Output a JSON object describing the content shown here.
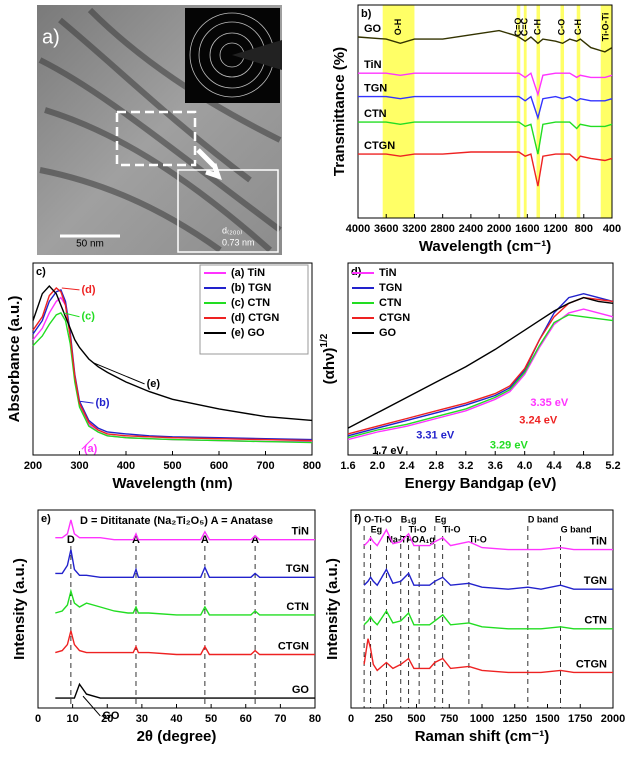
{
  "image_panel": {
    "label": "a)",
    "scale_bar": "50 nm",
    "spacing": "d₍₂₀₀₎",
    "spacing_value": "0.73 nm"
  },
  "chart_data": [
    {
      "type": "line",
      "panel": "b)",
      "xlabel": "Wavelength (cm⁻¹)",
      "ylabel": "Transmittance (%)",
      "legend": "left",
      "x": [
        4000,
        3600,
        3400,
        3200,
        2800,
        2400,
        2000,
        1800,
        1720,
        1630,
        1550,
        1450,
        1380,
        1200,
        1100,
        1000,
        900,
        850,
        700,
        500,
        400
      ],
      "xlim": [
        4000,
        400
      ],
      "xticks": [
        4000,
        3600,
        3200,
        2800,
        2400,
        2000,
        1600,
        1200,
        800,
        400
      ],
      "ylim": [
        0,
        100
      ],
      "series": [
        {
          "name": "GO",
          "color": "#333300",
          "values": [
            85,
            84,
            82,
            84,
            84,
            86,
            88,
            86,
            85,
            83,
            85,
            82,
            84,
            83,
            82,
            84,
            83,
            84,
            80,
            78,
            80
          ]
        },
        {
          "name": "TiN",
          "color": "#ff33ff",
          "values": [
            68,
            68,
            67,
            68,
            68,
            68,
            68,
            68,
            68,
            66,
            68,
            58,
            67,
            68,
            68,
            68,
            66,
            67,
            66,
            66,
            67
          ]
        },
        {
          "name": "TGN",
          "color": "#3333ff",
          "values": [
            57,
            57,
            56,
            57,
            57,
            57,
            57,
            57,
            57,
            55,
            57,
            47,
            56,
            57,
            56,
            57,
            55,
            56,
            55,
            55,
            56
          ]
        },
        {
          "name": "CTN",
          "color": "#22dd22",
          "values": [
            45,
            45,
            44,
            45,
            45,
            45,
            45,
            45,
            45,
            43,
            44,
            30,
            44,
            45,
            45,
            45,
            42,
            44,
            43,
            43,
            44
          ]
        },
        {
          "name": "CTGN",
          "color": "#ee2222",
          "values": [
            30,
            30,
            29,
            30,
            30,
            31,
            31,
            31,
            31,
            29,
            30,
            15,
            29,
            30,
            30,
            30,
            27,
            29,
            28,
            27,
            28
          ]
        }
      ],
      "band_color": "#ffff66",
      "bands": [
        {
          "label": "O-H",
          "range": [
            3650,
            3200
          ]
        },
        {
          "label": "C=O",
          "range": [
            1750,
            1700
          ]
        },
        {
          "label": "C=C",
          "range": [
            1650,
            1610
          ]
        },
        {
          "label": "C-H",
          "range": [
            1470,
            1420
          ]
        },
        {
          "label": "C-O",
          "range": [
            1130,
            1080
          ]
        },
        {
          "label": "C-H",
          "range": [
            900,
            850
          ]
        },
        {
          "label": "Ti-O-Ti",
          "range": [
            560,
            400
          ]
        }
      ]
    },
    {
      "type": "line",
      "panel": "c)",
      "xlabel": "Wavelength (nm)",
      "ylabel": "Absorbance (a.u.)",
      "legend": "upper right",
      "x": [
        200,
        220,
        235,
        250,
        260,
        270,
        280,
        290,
        300,
        320,
        340,
        360,
        400,
        450,
        500,
        600,
        700,
        800
      ],
      "xlim": [
        200,
        800
      ],
      "xticks": [
        200,
        300,
        400,
        500,
        600,
        700,
        800
      ],
      "ylim": [
        0,
        100
      ],
      "series": [
        {
          "name": "(a) TiN",
          "color": "#ff33ff",
          "values": [
            60,
            66,
            74,
            80,
            82,
            78,
            62,
            40,
            26,
            16,
            12,
            10,
            9,
            8.5,
            8,
            7.5,
            7,
            7
          ]
        },
        {
          "name": "(b) TGN",
          "color": "#2222cc",
          "values": [
            63,
            70,
            80,
            85,
            86,
            80,
            64,
            42,
            28,
            18,
            14,
            12,
            11,
            10,
            9.5,
            9,
            8.5,
            8
          ]
        },
        {
          "name": "(c) CTN",
          "color": "#22dd22",
          "values": [
            57,
            62,
            68,
            73,
            74,
            70,
            58,
            38,
            25,
            15,
            12,
            10,
            9,
            8.5,
            8,
            7.5,
            7,
            6.5
          ]
        },
        {
          "name": "(d) CTGN",
          "color": "#ee2222",
          "values": [
            65,
            72,
            83,
            87,
            85,
            78,
            62,
            41,
            27,
            17,
            13,
            11,
            10,
            9.5,
            9,
            8.5,
            8,
            7.5
          ]
        },
        {
          "name": "(e) GO",
          "color": "#000000",
          "values": [
            70,
            84,
            88,
            84,
            78,
            72,
            66,
            60,
            56,
            50,
            46,
            43,
            38,
            33,
            29,
            24,
            20,
            18
          ]
        }
      ],
      "annotations": [
        {
          "text": "(d)",
          "color": "#ee2222"
        },
        {
          "text": "(c)",
          "color": "#22dd22"
        },
        {
          "text": "(e)",
          "color": "#000000"
        },
        {
          "text": "(b)",
          "color": "#2222cc"
        },
        {
          "text": "(a)",
          "color": "#ff33ff"
        }
      ]
    },
    {
      "type": "line",
      "panel": "d)",
      "xlabel": "Energy Bandgap (eV)",
      "ylabel": "(αhν)",
      "ylabel_sup": "1/2",
      "legend": "upper left",
      "x": [
        1.6,
        2.0,
        2.4,
        2.8,
        3.2,
        3.6,
        3.8,
        4.0,
        4.2,
        4.4,
        4.6,
        4.8,
        5.0,
        5.2
      ],
      "xlim": [
        1.6,
        5.2
      ],
      "xticks": [
        1.6,
        {
          "value": 2,
          "label": "2.0"
        },
        2.4,
        2.8,
        3.2,
        3.6,
        {
          "value": 4,
          "label": "4.0"
        },
        4.4,
        4.8,
        5.2
      ],
      "ylim": [
        0,
        100
      ],
      "series": [
        {
          "name": "TiN",
          "color": "#ff33ff",
          "values": [
            8,
            12,
            15,
            19,
            23,
            29,
            33,
            42,
            56,
            68,
            74,
            76,
            74,
            72
          ]
        },
        {
          "name": "TGN",
          "color": "#2222cc",
          "values": [
            10,
            14,
            18,
            22,
            26,
            31,
            35,
            44,
            60,
            74,
            82,
            84,
            82,
            80
          ]
        },
        {
          "name": "CTN",
          "color": "#22dd22",
          "values": [
            9,
            13,
            16,
            20,
            24,
            30,
            34,
            43,
            57,
            69,
            73,
            72,
            71,
            70
          ]
        },
        {
          "name": "CTGN",
          "color": "#ee2222",
          "values": [
            11,
            15,
            19,
            23,
            27,
            32,
            36,
            45,
            60,
            72,
            79,
            82,
            81,
            80
          ]
        },
        {
          "name": "GO",
          "color": "#000000",
          "values": [
            14,
            22,
            30,
            38,
            46,
            55,
            60,
            65,
            70,
            75,
            79,
            82,
            80,
            79
          ]
        }
      ],
      "annotations": [
        {
          "text": "3.35 eV",
          "color": "#ff33ff"
        },
        {
          "text": "3.24 eV",
          "color": "#ee2222"
        },
        {
          "text": "3.31 eV",
          "color": "#2222cc"
        },
        {
          "text": "3.29 eV",
          "color": "#22dd22"
        },
        {
          "text": "1.7 eV",
          "color": "#000000"
        }
      ]
    },
    {
      "type": "line",
      "panel": "e)",
      "xlabel": "2θ (degree)",
      "ylabel": "Intensity (a.u.)",
      "legend": "right",
      "subtitle": "D = Dititanate (Na₂Ti₂O₅) A = Anatase",
      "x": [
        5,
        7,
        8.5,
        9.5,
        10.5,
        12,
        14,
        18,
        22,
        26,
        27.5,
        28.3,
        29,
        32,
        40,
        47,
        48.2,
        49.5,
        55,
        61.5,
        62.7,
        64,
        70,
        80
      ],
      "xlim": [
        0,
        80
      ],
      "xticks": [
        0,
        10,
        20,
        30,
        40,
        50,
        60,
        70,
        80
      ],
      "ylim": [
        0,
        100
      ],
      "series": [
        {
          "name": "TiN",
          "color": "#ff33ff",
          "values": [
            86,
            86,
            88,
            95,
            88,
            86,
            86,
            86,
            85,
            85,
            85,
            88,
            85,
            85,
            85,
            85,
            89,
            85,
            85,
            85,
            87,
            85,
            85,
            85
          ]
        },
        {
          "name": "TGN",
          "color": "#2222cc",
          "values": [
            68,
            68,
            72,
            80,
            70,
            67,
            67,
            66,
            66,
            66,
            66,
            70,
            66,
            66,
            66,
            66,
            71,
            66,
            66,
            66,
            68,
            66,
            66,
            66
          ]
        },
        {
          "name": "CTN",
          "color": "#22dd22",
          "values": [
            48,
            49,
            52,
            59,
            53,
            51,
            53,
            51,
            49,
            48,
            48,
            51,
            48,
            48,
            47,
            47,
            51,
            47,
            47,
            47,
            49,
            47,
            47,
            47
          ]
        },
        {
          "name": "CTGN",
          "color": "#ee2222",
          "values": [
            28,
            29,
            32,
            39,
            32,
            29,
            28,
            28,
            28,
            28,
            28,
            31,
            28,
            28,
            27,
            27,
            31,
            27,
            27,
            27,
            29,
            27,
            27,
            27
          ]
        },
        {
          "name": "GO",
          "color": "#000000",
          "values": [
            5,
            5,
            5,
            5,
            5,
            12,
            7,
            5,
            5,
            5,
            5,
            5,
            5,
            5,
            5,
            5,
            5,
            5,
            5,
            5,
            5,
            5,
            5,
            5
          ]
        }
      ],
      "peaks": [
        {
          "label": "D",
          "x": 9.5
        },
        {
          "label": "A",
          "x": 28.3
        },
        {
          "label": "A",
          "x": 48.2
        },
        {
          "label": "A",
          "x": 62.7
        }
      ],
      "annotations": [
        {
          "text": "GO",
          "color": "#000000"
        }
      ]
    },
    {
      "type": "line",
      "panel": "f)",
      "xlabel": "Raman shift (cm⁻¹)",
      "ylabel": "Intensity (a.u.)",
      "legend": "right",
      "x": [
        100,
        130,
        150,
        170,
        200,
        270,
        320,
        380,
        440,
        480,
        520,
        600,
        640,
        700,
        760,
        900,
        1000,
        1200,
        1350,
        1450,
        1600,
        1700,
        1800,
        2000
      ],
      "xlim": [
        0,
        2000
      ],
      "xticks": [
        0,
        250,
        500,
        750,
        1000,
        1250,
        1500,
        1750,
        2000
      ],
      "ylim": [
        0,
        100
      ],
      "series": [
        {
          "name": "TiN",
          "color": "#ff33ff",
          "values": [
            82,
            84,
            86,
            84,
            82,
            90,
            83,
            84,
            88,
            82,
            82,
            82,
            84,
            86,
            82,
            84,
            81,
            80,
            80,
            80,
            81,
            80,
            80,
            80
          ]
        },
        {
          "name": "TGN",
          "color": "#2222cc",
          "values": [
            62,
            64,
            66,
            64,
            62,
            70,
            63,
            64,
            68,
            62,
            62,
            62,
            64,
            66,
            62,
            63,
            61,
            60,
            61,
            60,
            62,
            60,
            60,
            60
          ]
        },
        {
          "name": "CTN",
          "color": "#22dd22",
          "values": [
            42,
            44,
            46,
            44,
            42,
            49,
            43,
            44,
            48,
            42,
            42,
            42,
            44,
            47,
            42,
            43,
            41,
            40,
            40,
            40,
            41,
            40,
            40,
            40
          ]
        },
        {
          "name": "CTGN",
          "color": "#ee2222",
          "values": [
            22,
            35,
            30,
            22,
            19,
            23,
            20,
            22,
            25,
            20,
            20,
            20,
            23,
            25,
            20,
            21,
            19,
            18,
            18,
            18,
            19,
            18,
            18,
            18
          ]
        }
      ],
      "peaks": [
        {
          "label": "O-Ti-O",
          "x": 100
        },
        {
          "label": "Eg",
          "x": 150
        },
        {
          "label": "Na-Ti-O",
          "x": 270
        },
        {
          "label": "B₁g",
          "x": 380
        },
        {
          "label": "Ti-O",
          "x": 440
        },
        {
          "label": "A₁g",
          "x": 520
        },
        {
          "label": "Eg",
          "x": 640
        },
        {
          "label": "Ti-O",
          "x": 700
        },
        {
          "label": "Ti-O",
          "x": 900
        },
        {
          "label": "D band",
          "x": 1350
        },
        {
          "label": "G band",
          "x": 1600
        }
      ]
    }
  ]
}
